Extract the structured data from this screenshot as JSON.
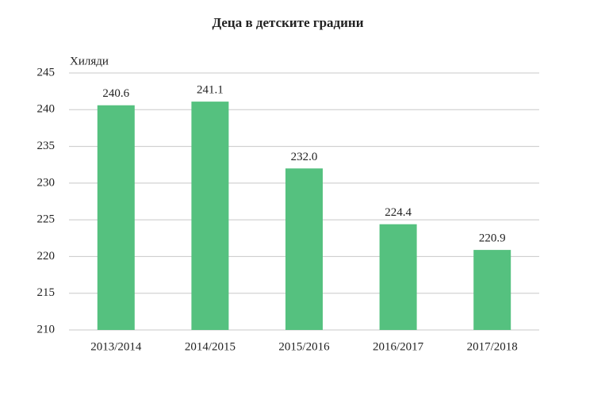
{
  "chart_data": {
    "type": "bar",
    "title": "Деца в детските градини",
    "y_label": "Хиляди",
    "categories": [
      "2013/2014",
      "2014/2015",
      "2015/2016",
      "2016/2017",
      "2017/2018"
    ],
    "values": [
      240.6,
      241.1,
      232.0,
      224.4,
      220.9
    ],
    "value_labels": [
      "240.6",
      "241.1",
      "232.0",
      "224.4",
      "220.9"
    ],
    "color": "#55c17f",
    "ylim": [
      210,
      245
    ],
    "yticks": [
      210,
      215,
      220,
      225,
      230,
      235,
      240,
      245
    ],
    "grid": true
  }
}
